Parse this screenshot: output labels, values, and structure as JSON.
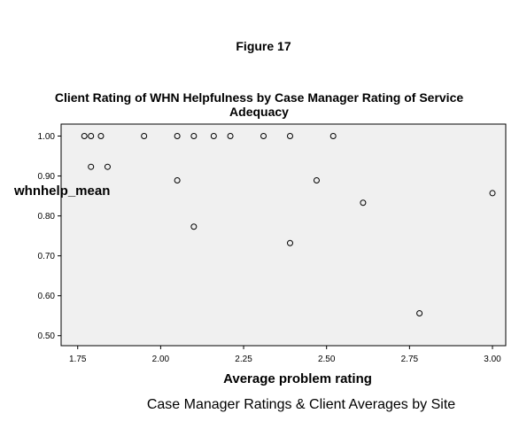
{
  "figure_label": "Figure 17",
  "caption": "Case Manager Ratings & Client Averages by Site",
  "chart_data": {
    "type": "scatter",
    "title": "Client Rating of WHN Helpfulness by Case Manager Rating of Service Adequacy",
    "xlabel": "Average problem rating",
    "ylabel": "whnhelp_mean",
    "xlim": [
      1.7,
      3.04
    ],
    "ylim": [
      0.475,
      1.03
    ],
    "xticks": [
      1.75,
      2.0,
      2.25,
      2.5,
      2.75,
      3.0
    ],
    "xtick_labels": [
      "1.75",
      "2.00",
      "2.25",
      "2.50",
      "2.75",
      "3.00"
    ],
    "yticks": [
      0.5,
      0.6,
      0.7,
      0.8,
      0.9,
      1.0
    ],
    "ytick_labels": [
      "0.50",
      "0.60",
      "0.70",
      "0.80",
      "0.90",
      "1.00"
    ],
    "grid": false,
    "marker": "hollow-circle",
    "colors": {
      "plot_background": "#f0f0f0",
      "marker_stroke": "#000000"
    },
    "points": [
      {
        "x": 1.77,
        "y": 1.0
      },
      {
        "x": 1.79,
        "y": 1.0
      },
      {
        "x": 1.82,
        "y": 1.0
      },
      {
        "x": 1.95,
        "y": 1.0
      },
      {
        "x": 2.05,
        "y": 1.0
      },
      {
        "x": 2.1,
        "y": 1.0
      },
      {
        "x": 2.16,
        "y": 1.0
      },
      {
        "x": 2.21,
        "y": 1.0
      },
      {
        "x": 2.31,
        "y": 1.0
      },
      {
        "x": 2.39,
        "y": 1.0
      },
      {
        "x": 2.52,
        "y": 1.0
      },
      {
        "x": 1.79,
        "y": 0.923
      },
      {
        "x": 1.84,
        "y": 0.923
      },
      {
        "x": 2.05,
        "y": 0.889
      },
      {
        "x": 2.47,
        "y": 0.889
      },
      {
        "x": 3.0,
        "y": 0.857
      },
      {
        "x": 2.61,
        "y": 0.833
      },
      {
        "x": 2.1,
        "y": 0.773
      },
      {
        "x": 2.39,
        "y": 0.732
      },
      {
        "x": 2.78,
        "y": 0.556
      }
    ]
  }
}
